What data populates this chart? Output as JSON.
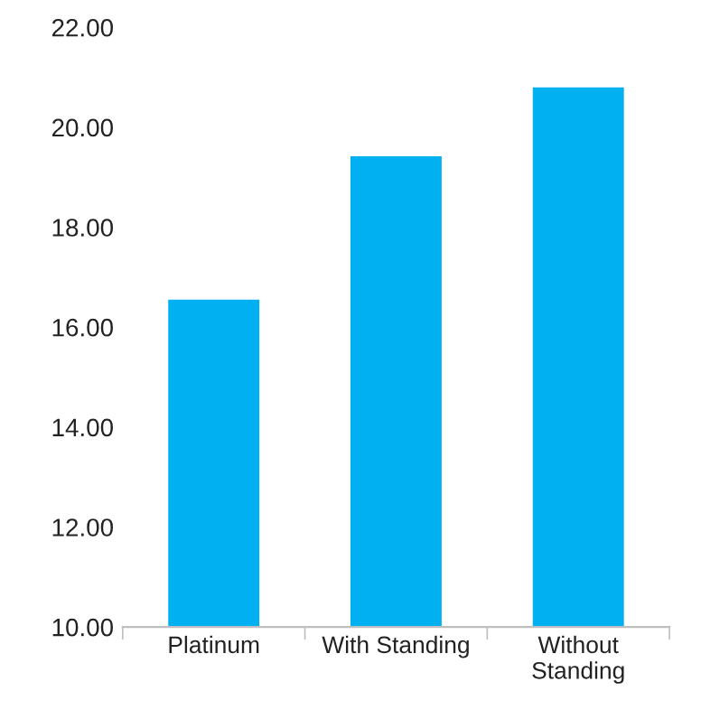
{
  "chart_data": {
    "type": "bar",
    "categories": [
      "Platinum",
      "With Standing",
      "Without\nStanding"
    ],
    "values": [
      16.55,
      19.42,
      20.8
    ],
    "color": "#00b0f0",
    "ylim": [
      10,
      22
    ],
    "yticks": [
      {
        "value": 10,
        "label": "10.00"
      },
      {
        "value": 12,
        "label": "12.00"
      },
      {
        "value": 14,
        "label": "14.00"
      },
      {
        "value": 16,
        "label": "16.00"
      },
      {
        "value": 18,
        "label": "18.00"
      },
      {
        "value": 20,
        "label": "20.00"
      },
      {
        "value": 22,
        "label": "22.00"
      }
    ],
    "grid": false
  }
}
